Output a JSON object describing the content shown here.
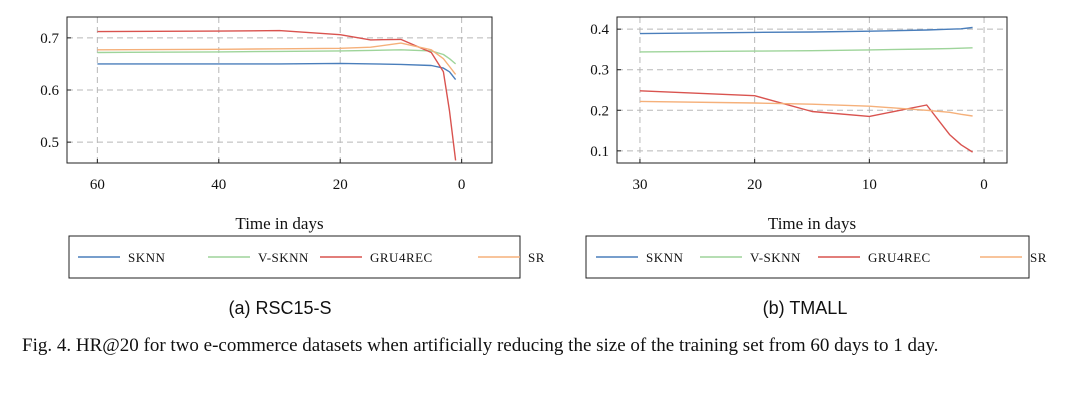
{
  "caption": "Fig. 4.  HR@20 for two e-commerce datasets when artificially reducing the size of the training set from 60 days to 1 day.",
  "chart_data": [
    {
      "type": "line",
      "subcaption": "(a) RSC15-S",
      "xlabel": "Time in days",
      "ylabel": "",
      "xlim": [
        65,
        -5
      ],
      "ylim": [
        0.46,
        0.74
      ],
      "xticks": [
        60,
        40,
        20,
        0
      ],
      "yticks": [
        0.5,
        0.6,
        0.7
      ],
      "ytick_labels": [
        "0.5",
        "0.6",
        "0.7"
      ],
      "grid": true,
      "legend": "below",
      "series": [
        {
          "name": "SKNN",
          "color": "#4a7ebb",
          "x": [
            60,
            40,
            30,
            20,
            10,
            5,
            3,
            2,
            1
          ],
          "y": [
            0.65,
            0.65,
            0.65,
            0.651,
            0.649,
            0.647,
            0.642,
            0.635,
            0.62
          ]
        },
        {
          "name": "V-SKNN",
          "color": "#9ed49a",
          "x": [
            60,
            40,
            30,
            20,
            15,
            10,
            5,
            3,
            2,
            1
          ],
          "y": [
            0.672,
            0.673,
            0.674,
            0.675,
            0.676,
            0.677,
            0.675,
            0.668,
            0.66,
            0.65
          ]
        },
        {
          "name": "GRU4REC",
          "color": "#d9534f",
          "x": [
            60,
            40,
            30,
            20,
            15,
            10,
            5,
            3,
            2,
            1
          ],
          "y": [
            0.712,
            0.713,
            0.714,
            0.706,
            0.696,
            0.697,
            0.672,
            0.635,
            0.56,
            0.465
          ]
        },
        {
          "name": "SR",
          "color": "#f5b07a",
          "x": [
            60,
            40,
            30,
            20,
            15,
            10,
            5,
            3,
            2,
            1
          ],
          "y": [
            0.677,
            0.678,
            0.679,
            0.68,
            0.682,
            0.69,
            0.677,
            0.66,
            0.645,
            0.63
          ]
        }
      ]
    },
    {
      "type": "line",
      "subcaption": "(b) TMALL",
      "xlabel": "Time in days",
      "ylabel": "",
      "xlim": [
        32,
        -2
      ],
      "ylim": [
        0.07,
        0.43
      ],
      "xticks": [
        30,
        20,
        10,
        0
      ],
      "yticks": [
        0.1,
        0.2,
        0.3,
        0.4
      ],
      "ytick_labels": [
        "0.1",
        "0.2",
        "0.3",
        "0.4"
      ],
      "grid": true,
      "legend": "below",
      "series": [
        {
          "name": "SKNN",
          "color": "#4a7ebb",
          "x": [
            30,
            20,
            15,
            10,
            5,
            3,
            2,
            1
          ],
          "y": [
            0.389,
            0.392,
            0.393,
            0.395,
            0.398,
            0.4,
            0.401,
            0.404
          ]
        },
        {
          "name": "V-SKNN",
          "color": "#9ed49a",
          "x": [
            30,
            20,
            15,
            10,
            5,
            3,
            2,
            1
          ],
          "y": [
            0.344,
            0.346,
            0.347,
            0.349,
            0.351,
            0.352,
            0.353,
            0.354
          ]
        },
        {
          "name": "GRU4REC",
          "color": "#d9534f",
          "x": [
            30,
            20,
            15,
            10,
            5,
            3,
            2,
            1
          ],
          "y": [
            0.248,
            0.236,
            0.197,
            0.185,
            0.213,
            0.14,
            0.115,
            0.097
          ]
        },
        {
          "name": "SR",
          "color": "#f5b07a",
          "x": [
            30,
            20,
            15,
            10,
            5,
            3,
            2,
            1
          ],
          "y": [
            0.222,
            0.218,
            0.215,
            0.21,
            0.2,
            0.195,
            0.19,
            0.186
          ]
        }
      ]
    }
  ]
}
